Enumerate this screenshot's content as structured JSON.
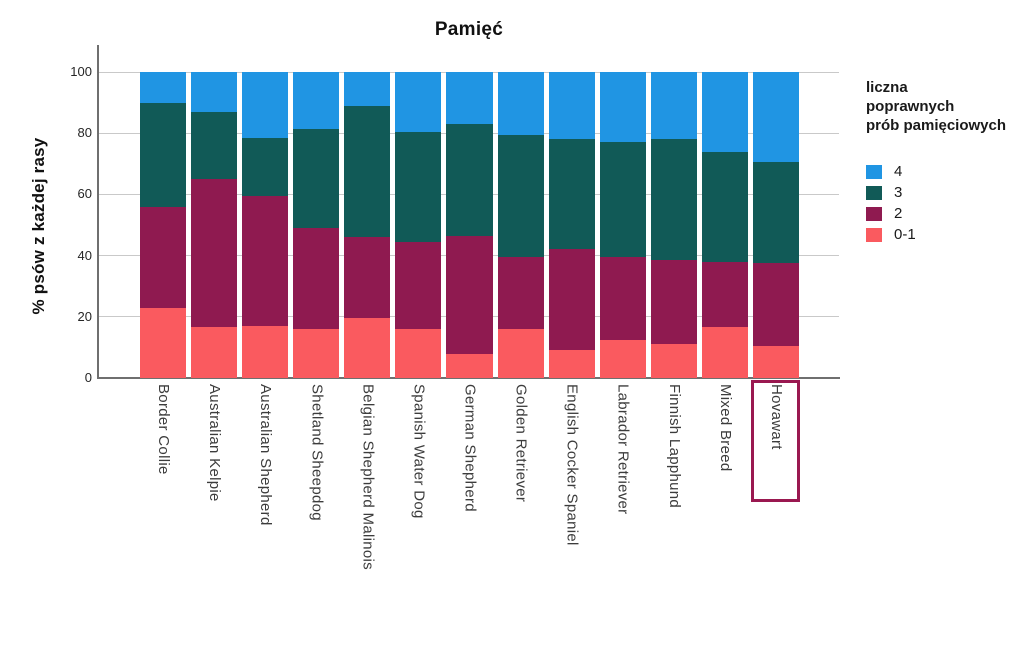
{
  "title": "Pamięć",
  "y_axis": {
    "title": "% psów z każdej rasy",
    "ticks": [
      0,
      20,
      40,
      60,
      80,
      100
    ]
  },
  "legend": {
    "title_lines": [
      "liczna",
      "poprawnych",
      "prób pamięciowych"
    ],
    "items": [
      {
        "label": "4",
        "color": "#2095E3"
      },
      {
        "label": "3",
        "color": "#115A57"
      },
      {
        "label": "2",
        "color": "#8F1A50"
      },
      {
        "label": "0-1",
        "color": "#FA5A5F"
      }
    ]
  },
  "chart_data": {
    "type": "bar",
    "subtype": "stacked-100-percent",
    "title": "Pamięć",
    "xlabel": "",
    "ylabel": "% psów z każdej rasy",
    "ylim": [
      0,
      100
    ],
    "grid": true,
    "legend_position": "right",
    "legend_title": "liczna poprawnych prób pamięciowych",
    "categories": [
      "Border Collie",
      "Australian Kelpie",
      "Australian Shepherd",
      "Shetland Sheepdog",
      "Belgian Shepherd Malinois",
      "Spanish Water Dog",
      "German Shepherd",
      "Golden Retriever",
      "English Cocker Spaniel",
      "Labrador Retriever",
      "Finnish Lapphund",
      "Mixed Breed",
      "Hovawart"
    ],
    "series": [
      {
        "name": "4",
        "color": "#2095E3",
        "values": [
          10,
          13,
          21.5,
          18.5,
          11,
          19.5,
          17,
          20.5,
          22,
          23,
          22,
          26,
          29.5
        ]
      },
      {
        "name": "3",
        "color": "#115A57",
        "values": [
          34,
          22,
          19,
          32.5,
          43,
          36,
          36.5,
          40,
          36,
          37.5,
          39.5,
          36,
          33
        ]
      },
      {
        "name": "2",
        "color": "#8F1A50",
        "values": [
          33,
          48.5,
          42.5,
          33,
          26.5,
          28.5,
          38.5,
          23.5,
          33,
          27,
          27.5,
          21.5,
          27
        ]
      },
      {
        "name": "0-1",
        "color": "#FA5A5F",
        "values": [
          23,
          16.5,
          17,
          16,
          19.5,
          16,
          8,
          16,
          9,
          12.5,
          11,
          16.5,
          10.5
        ]
      }
    ],
    "highlight": {
      "category": "Hovawart",
      "box_color": "#9A1850"
    }
  }
}
